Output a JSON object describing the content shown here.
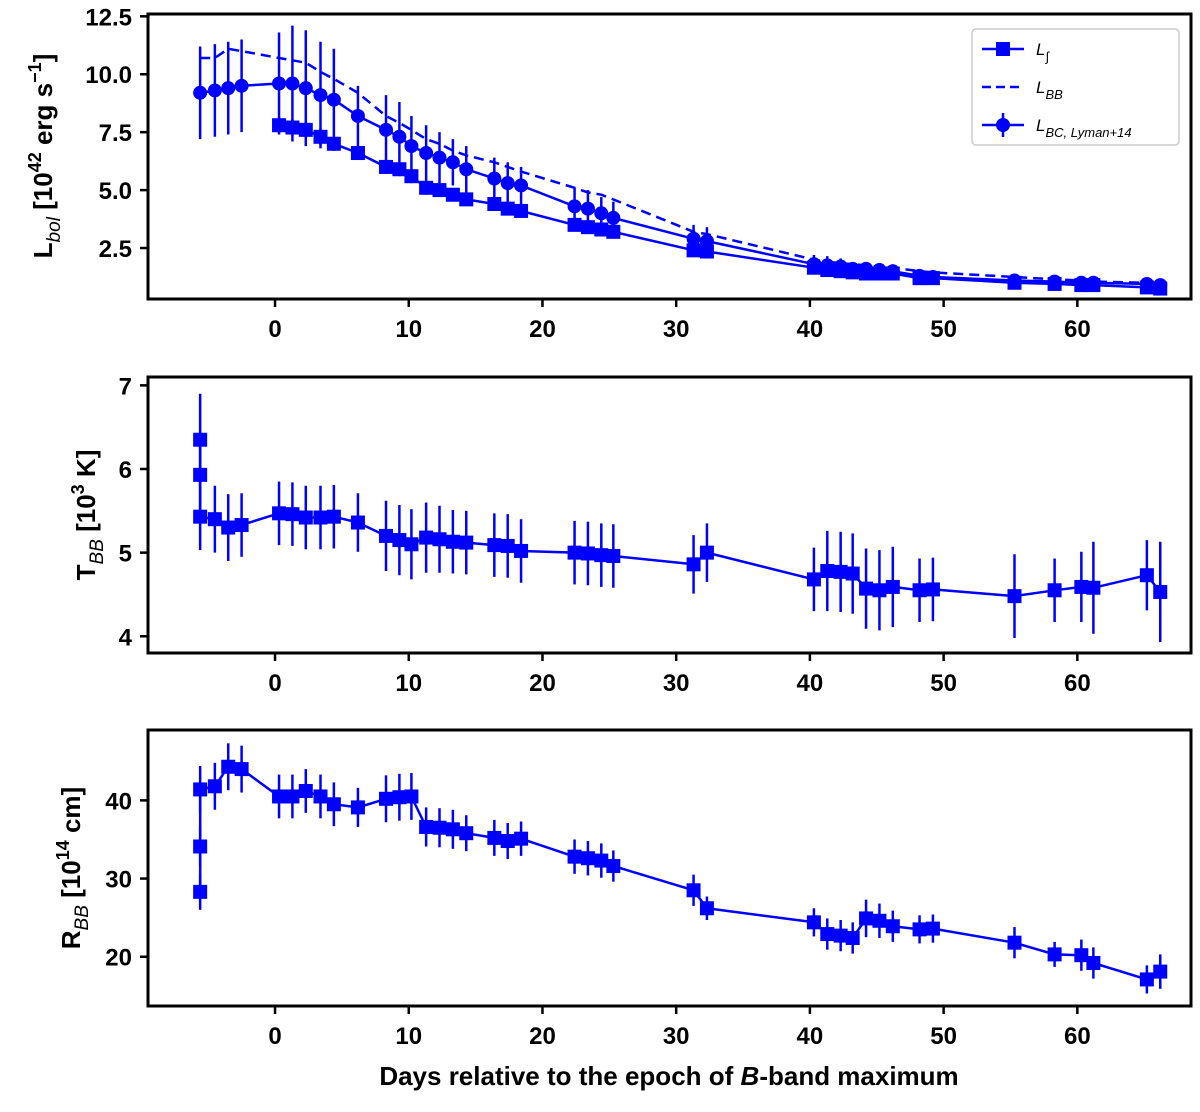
{
  "colors": {
    "series": "#0000ff",
    "axis": "#000000"
  },
  "shared_xlabel_parts": [
    "Days relative to the epoch of ",
    "B",
    "-band maximum"
  ],
  "chart_data": [
    {
      "type": "line",
      "panel": "top",
      "ylabel": {
        "base": "L",
        "sub": "bol",
        "rest": " [10",
        "sup": "42",
        "rest2": " erg s",
        "sup2": "−1",
        "end": "]"
      },
      "xlim": [
        -9.5,
        68.5
      ],
      "ylim": [
        0.3,
        12.6
      ],
      "xticks": [
        0,
        10,
        20,
        30,
        40,
        50,
        60
      ],
      "yticks": [
        2.5,
        5.0,
        7.5,
        10.0,
        12.5
      ],
      "ytick_labels": [
        "2.5",
        "5.0",
        "7.5",
        "10.0",
        "12.5"
      ],
      "legend": [
        {
          "label_base": "L",
          "label_sub": "∫",
          "style": "solid-square"
        },
        {
          "label_base": "L",
          "label_sub": "BB",
          "style": "dashed"
        },
        {
          "label_base": "L",
          "label_sub": "BC, Lyman+14",
          "style": "solid-circle"
        }
      ],
      "series": [
        {
          "name": "L_int",
          "style": "solid",
          "marker": "square",
          "x": [
            0.3,
            1.3,
            2.3,
            3.4,
            4.4,
            6.2,
            8.3,
            9.3,
            10.2,
            11.3,
            12.3,
            13.3,
            14.3,
            16.4,
            17.4,
            18.4,
            22.4,
            23.4,
            24.4,
            25.3,
            31.3,
            32.3,
            40.3,
            41.3,
            42.3,
            43.2,
            44.2,
            45.2,
            46.2,
            48.2,
            49.2,
            55.3,
            58.3,
            60.3,
            61.2,
            65.2,
            66.2
          ],
          "y": [
            7.8,
            7.7,
            7.6,
            7.3,
            7.0,
            6.6,
            6.0,
            5.9,
            5.6,
            5.1,
            5.0,
            4.8,
            4.6,
            4.4,
            4.2,
            4.1,
            3.5,
            3.4,
            3.3,
            3.2,
            2.4,
            2.35,
            1.65,
            1.55,
            1.5,
            1.45,
            1.4,
            1.4,
            1.4,
            1.2,
            1.2,
            1.0,
            0.95,
            0.9,
            0.9,
            0.8,
            0.75
          ],
          "yerr": [
            0.35,
            0.35,
            0.35,
            0.35,
            0.3,
            0.3,
            0.3,
            0.3,
            0.3,
            0.3,
            0.25,
            0.25,
            0.25,
            0.25,
            0.2,
            0.2,
            0.2,
            0.2,
            0.2,
            0.2,
            0.15,
            0.15,
            0.1,
            0.1,
            0.1,
            0.1,
            0.1,
            0.1,
            0.1,
            0.08,
            0.08,
            0.07,
            0.07,
            0.07,
            0.07,
            0.06,
            0.06
          ]
        },
        {
          "name": "L_BB",
          "style": "dashed",
          "marker": "none",
          "x": [
            -5.6,
            -4.5,
            -3.5,
            -2.5,
            0.3,
            1.3,
            2.3,
            3.4,
            4.4,
            6.2,
            8.3,
            9.3,
            10.2,
            11.3,
            12.3,
            13.3,
            14.3,
            16.4,
            17.4,
            18.4,
            22.4,
            23.4,
            24.4,
            25.3,
            31.3,
            32.3,
            40.3,
            41.3,
            42.3,
            43.2,
            44.2,
            45.2,
            46.2,
            48.2,
            49.2,
            55.3,
            58.3,
            60.3,
            61.2,
            65.2,
            66.2
          ],
          "y": [
            10.7,
            10.7,
            11.1,
            11.0,
            10.7,
            10.6,
            10.5,
            10.1,
            9.8,
            9.2,
            8.2,
            7.9,
            7.6,
            7.2,
            7.0,
            6.7,
            6.5,
            6.2,
            6.0,
            5.8,
            5.1,
            4.9,
            4.8,
            4.6,
            3.2,
            3.1,
            2.0,
            1.9,
            1.85,
            1.8,
            1.75,
            1.7,
            1.65,
            1.5,
            1.45,
            1.25,
            1.15,
            1.1,
            1.05,
            1.0,
            0.95
          ]
        },
        {
          "name": "L_BC",
          "style": "solid",
          "marker": "circle",
          "x": [
            -5.6,
            -4.5,
            -3.5,
            -2.5,
            0.3,
            1.3,
            2.3,
            3.4,
            4.4,
            6.2,
            8.3,
            9.3,
            10.2,
            11.3,
            12.3,
            13.3,
            14.3,
            16.4,
            17.4,
            18.4,
            22.4,
            23.4,
            24.4,
            25.3,
            31.3,
            32.3,
            40.3,
            41.3,
            42.3,
            43.2,
            44.2,
            45.2,
            46.2,
            48.2,
            49.2,
            55.3,
            58.3,
            60.3,
            61.2,
            65.2,
            66.2
          ],
          "y": [
            9.2,
            9.3,
            9.4,
            9.5,
            9.6,
            9.6,
            9.4,
            9.1,
            8.9,
            8.2,
            7.6,
            7.3,
            6.9,
            6.6,
            6.4,
            6.2,
            5.9,
            5.5,
            5.3,
            5.2,
            4.3,
            4.2,
            4.0,
            3.8,
            2.9,
            2.8,
            1.8,
            1.75,
            1.7,
            1.6,
            1.6,
            1.55,
            1.5,
            1.3,
            1.25,
            1.1,
            1.05,
            1.0,
            1.0,
            0.95,
            0.9
          ],
          "yerr": [
            2.0,
            2.0,
            2.0,
            2.0,
            2.2,
            2.5,
            2.5,
            2.3,
            2.2,
            1.3,
            1.5,
            1.5,
            1.3,
            1.2,
            1.1,
            1.0,
            1.0,
            0.9,
            0.9,
            0.8,
            0.8,
            0.8,
            0.7,
            0.7,
            0.6,
            0.6,
            0.4,
            0.4,
            0.35,
            0.3,
            0.3,
            0.3,
            0.3,
            0.25,
            0.25,
            0.2,
            0.2,
            0.2,
            0.2,
            0.15,
            0.15
          ]
        }
      ]
    },
    {
      "type": "line",
      "panel": "middle",
      "ylabel": {
        "base": "T",
        "sub": "BB",
        "rest": " [10",
        "sup": "3",
        "end": " K]"
      },
      "xlim": [
        -9.5,
        68.5
      ],
      "ylim": [
        3.8,
        7.1
      ],
      "xticks": [
        0,
        10,
        20,
        30,
        40,
        50,
        60
      ],
      "yticks": [
        4,
        5,
        6,
        7
      ],
      "ytick_labels": [
        "4",
        "5",
        "6",
        "7"
      ],
      "series": [
        {
          "name": "T_BB",
          "style": "solid",
          "marker": "square",
          "x": [
            -5.6,
            -5.6,
            -5.6,
            -4.5,
            -3.5,
            -2.5,
            0.3,
            1.3,
            2.3,
            3.4,
            4.4,
            6.2,
            8.3,
            9.3,
            10.2,
            11.3,
            12.3,
            13.3,
            14.3,
            16.4,
            17.4,
            18.4,
            22.4,
            23.4,
            24.4,
            25.3,
            31.3,
            32.3,
            40.3,
            41.3,
            42.3,
            43.2,
            44.2,
            45.2,
            46.2,
            48.2,
            49.2,
            55.3,
            58.3,
            60.3,
            61.2,
            65.2,
            66.2
          ],
          "y": [
            6.35,
            5.93,
            5.43,
            5.4,
            5.3,
            5.33,
            5.47,
            5.46,
            5.42,
            5.42,
            5.43,
            5.36,
            5.2,
            5.15,
            5.1,
            5.18,
            5.16,
            5.13,
            5.12,
            5.09,
            5.08,
            5.02,
            5.0,
            4.99,
            4.97,
            4.96,
            4.86,
            5.0,
            4.68,
            4.78,
            4.77,
            4.75,
            4.57,
            4.55,
            4.59,
            4.55,
            4.56,
            4.48,
            4.55,
            4.59,
            4.58,
            4.73,
            4.53
          ],
          "yerr": [
            0.55,
            0.45,
            0.4,
            0.4,
            0.4,
            0.38,
            0.38,
            0.38,
            0.38,
            0.38,
            0.38,
            0.35,
            0.42,
            0.42,
            0.42,
            0.42,
            0.4,
            0.38,
            0.38,
            0.38,
            0.38,
            0.38,
            0.38,
            0.38,
            0.38,
            0.38,
            0.35,
            0.35,
            0.38,
            0.48,
            0.48,
            0.48,
            0.48,
            0.48,
            0.48,
            0.38,
            0.38,
            0.5,
            0.38,
            0.42,
            0.55,
            0.42,
            0.6
          ]
        }
      ]
    },
    {
      "type": "line",
      "panel": "bottom",
      "ylabel": {
        "base": "R",
        "sub": "BB",
        "rest": " [10",
        "sup": "14",
        "end": " cm]"
      },
      "xlim": [
        -9.5,
        68.5
      ],
      "ylim": [
        13.7,
        49.0
      ],
      "xticks": [
        0,
        10,
        20,
        30,
        40,
        50,
        60
      ],
      "yticks": [
        20,
        30,
        40
      ],
      "ytick_labels": [
        "20",
        "30",
        "40"
      ],
      "series": [
        {
          "name": "R_BB",
          "style": "solid",
          "marker": "square",
          "x": [
            -5.6,
            -5.6,
            -5.6,
            -4.5,
            -3.5,
            -2.5,
            0.3,
            1.3,
            2.3,
            3.4,
            4.4,
            6.2,
            8.3,
            9.3,
            10.2,
            11.3,
            12.3,
            13.3,
            14.3,
            16.4,
            17.4,
            18.4,
            22.4,
            23.4,
            24.4,
            25.3,
            31.3,
            32.3,
            40.3,
            41.3,
            42.3,
            43.2,
            44.2,
            45.2,
            46.2,
            48.2,
            49.2,
            55.3,
            58.3,
            60.3,
            61.2,
            65.2,
            66.2
          ],
          "y": [
            28.3,
            34.1,
            41.4,
            41.8,
            44.3,
            44.0,
            40.5,
            40.5,
            41.2,
            40.5,
            39.5,
            39.1,
            40.2,
            40.4,
            40.5,
            36.6,
            36.5,
            36.3,
            35.8,
            35.2,
            34.8,
            35.1,
            32.8,
            32.6,
            32.3,
            31.6,
            28.5,
            26.2,
            24.4,
            22.9,
            22.7,
            22.4,
            24.9,
            24.6,
            23.9,
            23.5,
            23.6,
            21.8,
            20.3,
            20.2,
            19.2,
            17.1,
            18.1
          ],
          "yerr": [
            2.3,
            2.5,
            3.0,
            3.0,
            3.0,
            3.0,
            2.8,
            2.8,
            2.8,
            2.8,
            2.8,
            2.5,
            3.0,
            3.0,
            3.0,
            2.5,
            2.5,
            2.5,
            2.3,
            2.3,
            2.3,
            2.2,
            2.2,
            2.2,
            2.2,
            2.0,
            2.0,
            1.5,
            1.8,
            2.0,
            2.0,
            2.0,
            2.4,
            2.2,
            2.0,
            1.8,
            1.8,
            2.0,
            1.6,
            2.0,
            2.0,
            1.8,
            2.2
          ]
        }
      ]
    }
  ]
}
